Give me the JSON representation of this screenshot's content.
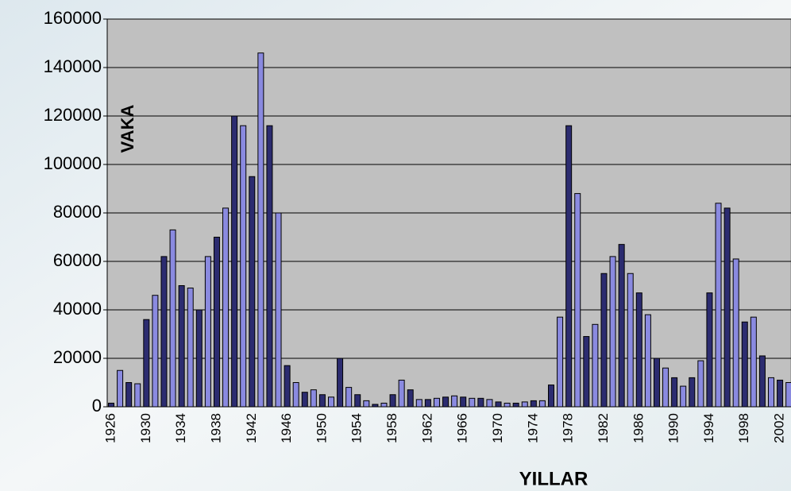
{
  "chart_data": {
    "type": "bar",
    "y_axis_label": "VAKA",
    "x_axis_label": "YILLAR",
    "categories": [
      "1926",
      null,
      null,
      null,
      "1930",
      null,
      null,
      null,
      "1934",
      null,
      null,
      null,
      "1938",
      null,
      null,
      null,
      "1942",
      null,
      null,
      null,
      "1946",
      null,
      null,
      null,
      "1950",
      null,
      null,
      null,
      "1954",
      null,
      null,
      null,
      "1958",
      null,
      null,
      null,
      "1962",
      null,
      null,
      null,
      "1966",
      null,
      null,
      null,
      "1970",
      null,
      null,
      null,
      "1974",
      null,
      null,
      null,
      "1978",
      null,
      null,
      null,
      "1982",
      null,
      null,
      null,
      "1986",
      null,
      null,
      null,
      "1990",
      null,
      null,
      null,
      "1994",
      null,
      null,
      null,
      "1998",
      null,
      null,
      null,
      "2002",
      null
    ],
    "values": [
      1500,
      15000,
      10000,
      9500,
      36000,
      46000,
      62000,
      73000,
      50000,
      49000,
      40000,
      62000,
      70000,
      82000,
      120000,
      116000,
      95000,
      146000,
      116000,
      80000,
      17000,
      10000,
      6000,
      7000,
      5000,
      4000,
      20000,
      8000,
      5000,
      2500,
      1000,
      1500,
      5000,
      11000,
      7000,
      3000,
      3000,
      3500,
      4000,
      4500,
      4000,
      3500,
      3500,
      3000,
      2000,
      1500,
      1500,
      2000,
      2500,
      2500,
      9000,
      37000,
      116000,
      88000,
      29000,
      34000,
      55000,
      62000,
      67000,
      55000,
      47000,
      38000,
      20000,
      16000,
      12000,
      8500,
      12000,
      19000,
      47000,
      84000,
      82000,
      61000,
      35000,
      37000,
      21000,
      12000,
      11000,
      10000
    ],
    "colors": [
      "#2c2c70",
      "#8a8ae0"
    ],
    "ylim": [
      0,
      160000
    ],
    "yticks": [
      0,
      20000,
      40000,
      60000,
      80000,
      100000,
      120000,
      140000,
      160000
    ],
    "grid": true
  }
}
